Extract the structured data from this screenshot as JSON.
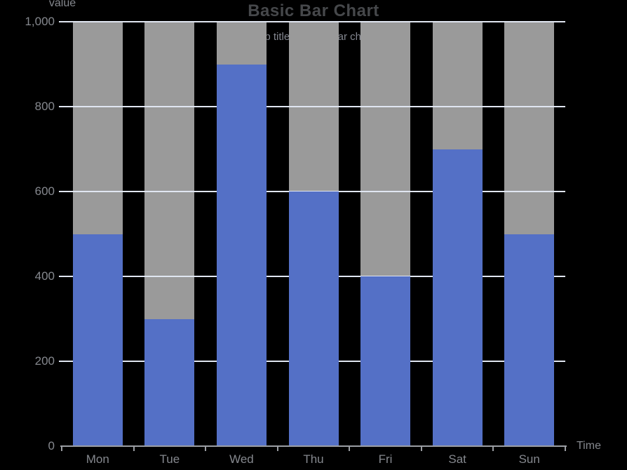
{
  "chart_data": {
    "type": "bar",
    "title": "Basic Bar Chart",
    "subtitle": "sub title of basic bar chart",
    "xlabel": "Time",
    "ylabel": "value",
    "categories": [
      "Mon",
      "Tue",
      "Wed",
      "Thu",
      "Fri",
      "Sat",
      "Sun"
    ],
    "series": [
      {
        "name": "value",
        "values": [
          500,
          300,
          900,
          600,
          400,
          700,
          500
        ],
        "color": "#5470c6"
      }
    ],
    "background_bars": {
      "enabled": true,
      "full_value": 1000,
      "color": "#9a9a9a"
    },
    "ylim": [
      0,
      1000
    ],
    "yticks": [
      0,
      200,
      400,
      600,
      800,
      1000
    ],
    "ytick_labels": [
      "0",
      "200",
      "400",
      "600",
      "800",
      "1,000"
    ],
    "grid": true,
    "legend": "none",
    "style": {
      "background": "#000000",
      "gridline_color": "#e0e6f1",
      "axis_line_color": "#9b9ea3",
      "axis_label_color": "#85888e",
      "title_color": "#46484b",
      "subtitle_color": "#83868f"
    }
  }
}
